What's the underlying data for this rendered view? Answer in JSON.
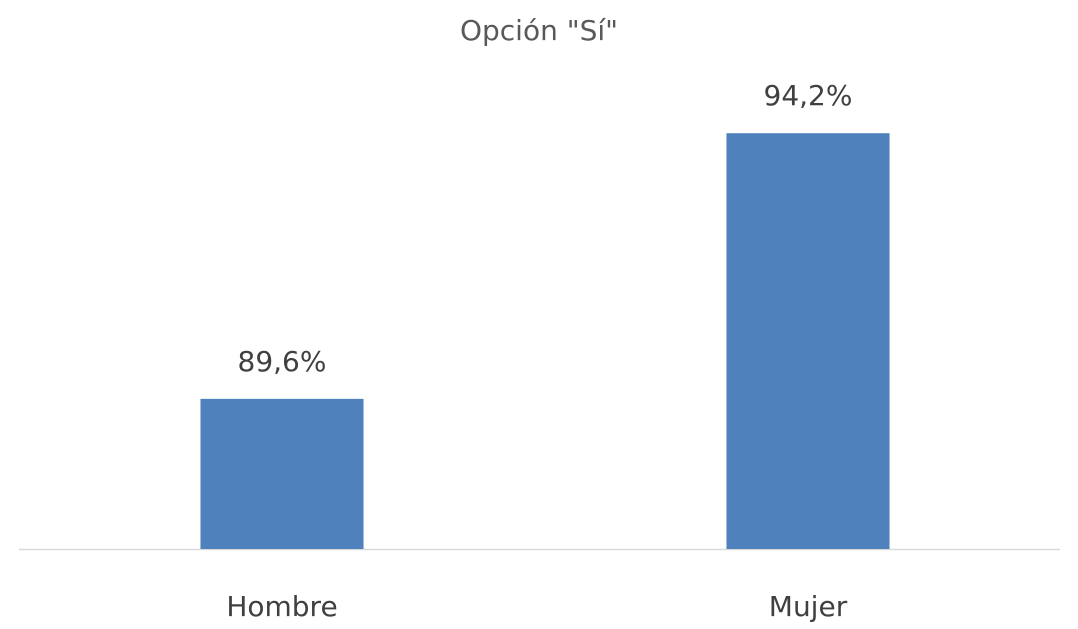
{
  "chart_data": {
    "type": "bar",
    "title": "Opción \"Sí\"",
    "categories": [
      "Hombre",
      "Mujer"
    ],
    "values": [
      89.6,
      94.2
    ],
    "value_labels": [
      "89,6%",
      "94,2%"
    ],
    "color": "#4f81bd",
    "ylim": [
      87,
      95
    ]
  }
}
